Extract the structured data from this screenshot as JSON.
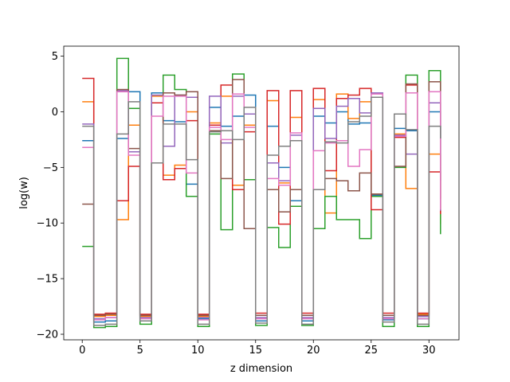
{
  "chart_data": {
    "type": "line",
    "drawstyle": "steps-post",
    "title": "",
    "xlabel": "z dimension",
    "ylabel": "log(w)",
    "xlim": [
      -1.6,
      32.6
    ],
    "ylim": [
      -20.5,
      5.9
    ],
    "xticks": [
      0,
      5,
      10,
      15,
      20,
      25,
      30
    ],
    "yticks": [
      5,
      0,
      -5,
      -10,
      -15,
      -20
    ],
    "grid": false,
    "legend": "none",
    "x": [
      0,
      1,
      2,
      3,
      4,
      5,
      6,
      7,
      8,
      9,
      10,
      11,
      12,
      13,
      14,
      15,
      16,
      17,
      18,
      19,
      20,
      21,
      22,
      23,
      24,
      25,
      26,
      27,
      28,
      29,
      30,
      31
    ],
    "series": [
      {
        "color": "#1f77b4",
        "values": [
          -2.6,
          -18.9,
          -18.8,
          -2.4,
          1.8,
          -18.8,
          1.7,
          -0.8,
          -0.9,
          -6.5,
          -18.6,
          0.4,
          -1.3,
          -0.4,
          1.5,
          -18.8,
          -1.3,
          -5.0,
          -8.0,
          -18.8,
          -0.4,
          -1.0,
          0.0,
          -1.1,
          -1.0,
          -7.5,
          -18.7,
          -1.5,
          -1.7,
          -18.6,
          0.0,
          -6.2
        ]
      },
      {
        "color": "#ff7f0e",
        "values": [
          0.9,
          -18.4,
          -18.3,
          -9.7,
          -1.2,
          -18.4,
          1.4,
          -5.7,
          -4.8,
          0.0,
          -18.4,
          -1.0,
          1.4,
          -6.6,
          -1.2,
          -18.3,
          1.0,
          -6.4,
          -0.5,
          -18.3,
          1.1,
          -9.1,
          1.6,
          -0.6,
          0.9,
          -7.4,
          -18.3,
          -2.0,
          -6.9,
          -18.2,
          -3.8,
          -10.1
        ]
      },
      {
        "color": "#2ca02c",
        "values": [
          -12.1,
          -19.4,
          -19.3,
          4.8,
          0.3,
          -19.1,
          -4.6,
          3.3,
          2.0,
          -7.6,
          -19.3,
          -2.0,
          -10.6,
          3.4,
          -6.1,
          -19.2,
          -10.4,
          -12.2,
          -8.5,
          -19.2,
          -10.5,
          -7.6,
          -9.7,
          -9.7,
          -11.4,
          -7.6,
          -19.3,
          -5.0,
          3.3,
          -19.3,
          3.7,
          -11.0
        ]
      },
      {
        "color": "#d62728",
        "values": [
          3.0,
          -18.2,
          -18.1,
          -8.0,
          -4.9,
          -18.2,
          0.8,
          -6.1,
          -5.1,
          -0.8,
          -18.2,
          -1.2,
          2.4,
          -7.0,
          -1.8,
          -18.1,
          1.9,
          -10.1,
          1.9,
          -18.1,
          2.1,
          -5.3,
          1.2,
          1.5,
          2.1,
          -8.8,
          -18.1,
          -2.3,
          2.4,
          -18.1,
          -5.4,
          -9.2
        ]
      },
      {
        "color": "#9467bd",
        "values": [
          -1.1,
          -18.6,
          -18.5,
          1.9,
          -3.6,
          -18.5,
          1.5,
          -3.1,
          1.5,
          1.3,
          -18.5,
          1.4,
          -2.8,
          1.4,
          -0.2,
          -18.5,
          -4.6,
          -6.2,
          -2.1,
          -18.5,
          0.3,
          -2.4,
          0.5,
          1.2,
          -0.1,
          1.7,
          -18.5,
          -2.1,
          -3.8,
          -18.4,
          0.8,
          -8.9
        ]
      },
      {
        "color": "#8c564b",
        "values": [
          -8.3,
          -18.3,
          -18.2,
          2.0,
          -3.3,
          -18.3,
          -4.6,
          1.7,
          1.5,
          1.8,
          -18.3,
          -1.7,
          -6.0,
          2.9,
          -10.5,
          -18.3,
          -7.0,
          -9.0,
          -7.0,
          -18.3,
          -7.0,
          -6.0,
          -6.2,
          -7.1,
          -5.5,
          -7.4,
          -18.3,
          -4.9,
          2.5,
          -18.3,
          2.7,
          -7.8
        ]
      },
      {
        "color": "#e377c2",
        "values": [
          -3.2,
          -18.7,
          -18.5,
          1.8,
          -3.9,
          -18.6,
          -0.4,
          1.4,
          1.4,
          -5.5,
          -18.7,
          -1.4,
          -2.5,
          1.6,
          -1.4,
          -18.6,
          -6.0,
          -6.6,
          -1.9,
          -18.6,
          -3.5,
          -2.8,
          -2.6,
          -4.9,
          -3.4,
          1.6,
          -18.6,
          -2.2,
          1.7,
          -18.6,
          1.8,
          -8.8
        ]
      },
      {
        "color": "#7f7f7f",
        "values": [
          -1.3,
          -19.2,
          -19.1,
          -2.0,
          0.9,
          -18.8,
          -4.6,
          -1.1,
          -1.1,
          -4.3,
          -19.1,
          -1.8,
          -1.7,
          -2.5,
          0.4,
          -19.0,
          -3.9,
          -3.1,
          -2.6,
          -19.1,
          -7.0,
          -2.7,
          -2.8,
          -0.9,
          -0.4,
          1.3,
          -18.9,
          -0.2,
          -1.6,
          -19.1,
          -1.3,
          -2.4
        ]
      }
    ]
  }
}
